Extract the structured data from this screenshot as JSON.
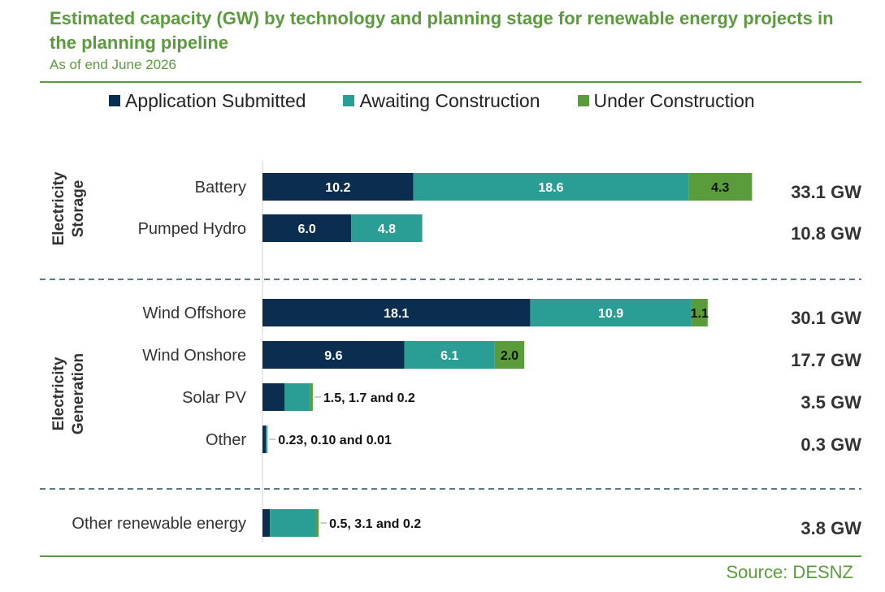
{
  "title": "Estimated capacity (GW) by technology and planning stage for renewable energy projects in the planning pipeline",
  "subtitle": "As of end June 2026",
  "source": "Source: DESNZ",
  "colors": {
    "application_submitted": "#0b2d4f",
    "awaiting_construction": "#2a9d94",
    "under_construction": "#5a9b3c",
    "accent": "#5a9b3c"
  },
  "chart_data": {
    "type": "bar",
    "orientation": "horizontal",
    "stacked": true,
    "legend_position": "top",
    "groups": [
      {
        "label": "Electricity Storage",
        "categories": [
          "Battery",
          "Pumped Hydro"
        ]
      },
      {
        "label": "Electricity Generation",
        "categories": [
          "Wind Offshore",
          "Wind Onshore",
          "Solar PV",
          "Other"
        ]
      },
      {
        "label": "",
        "categories": [
          "Other renewable energy"
        ]
      }
    ],
    "categories": [
      "Battery",
      "Pumped Hydro",
      "Wind Offshore",
      "Wind Onshore",
      "Solar PV",
      "Other",
      "Other renewable energy"
    ],
    "series": [
      {
        "name": "Application Submitted",
        "values": [
          10.2,
          6.0,
          18.1,
          9.6,
          1.5,
          0.23,
          0.5
        ]
      },
      {
        "name": "Awaiting Construction",
        "values": [
          18.6,
          4.8,
          10.9,
          6.1,
          1.7,
          0.1,
          3.1
        ]
      },
      {
        "name": "Under Construction",
        "values": [
          4.3,
          0,
          1.1,
          2.0,
          0.2,
          0.01,
          0.2
        ]
      }
    ],
    "segment_labels": [
      [
        "10.2",
        "18.6",
        "4.3"
      ],
      [
        "6.0",
        "4.8",
        ""
      ],
      [
        "18.1",
        "10.9",
        "1.1"
      ],
      [
        "9.6",
        "6.1",
        "2.0"
      ],
      [
        "",
        "",
        ""
      ],
      [
        "",
        "",
        ""
      ],
      [
        "",
        "",
        ""
      ]
    ],
    "callouts": [
      "",
      "",
      "",
      "",
      "1.5, 1.7 and 0.2",
      "0.23, 0.10 and 0.01",
      "0.5, 3.1 and 0.2"
    ],
    "totals": [
      "33.1 GW",
      "10.8 GW",
      "30.1 GW",
      "17.7 GW",
      "3.5 GW",
      "0.3 GW",
      "3.8 GW"
    ]
  }
}
